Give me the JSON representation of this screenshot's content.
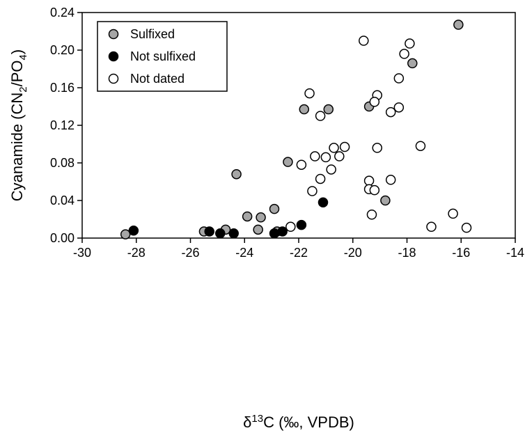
{
  "chart_data": {
    "type": "scatter",
    "xlabel_parts": {
      "delta": "δ",
      "sup": "13",
      "rest": "C (‰, VPDB)"
    },
    "ylabel_parts": {
      "pre": "Cyanamide (CN",
      "sub1": "2",
      "mid": "/PO",
      "sub2": "4",
      "post": ")"
    },
    "xlim": [
      -30,
      -14
    ],
    "ylim": [
      0,
      0.24
    ],
    "xticks": [
      -30,
      -28,
      -26,
      -24,
      -22,
      -20,
      -18,
      -16,
      -14
    ],
    "xtick_labels": [
      "-30",
      "-28",
      "-26",
      "-24",
      "-22",
      "-20",
      "-18",
      "-16",
      "-14"
    ],
    "yticks": [
      0,
      0.04,
      0.08,
      0.12,
      0.16,
      0.2,
      0.24
    ],
    "ytick_labels": [
      "0.00",
      "0.04",
      "0.08",
      "0.12",
      "0.16",
      "0.20",
      "0.24"
    ],
    "grid": false,
    "legend_position": "top-left",
    "series": [
      {
        "name": "Sulfixed",
        "fill": "#a6a6a6",
        "stroke": "#000000",
        "points": [
          [
            -28.4,
            0.004
          ],
          [
            -25.5,
            0.007
          ],
          [
            -24.7,
            0.009
          ],
          [
            -23.5,
            0.009
          ],
          [
            -22.8,
            0.007
          ],
          [
            -23.9,
            0.023
          ],
          [
            -23.4,
            0.022
          ],
          [
            -22.9,
            0.031
          ],
          [
            -24.3,
            0.068
          ],
          [
            -22.4,
            0.081
          ],
          [
            -21.8,
            0.137
          ],
          [
            -20.9,
            0.137
          ],
          [
            -19.4,
            0.14
          ],
          [
            -18.8,
            0.04
          ],
          [
            -17.8,
            0.186
          ],
          [
            -16.1,
            0.227
          ]
        ]
      },
      {
        "name": "Not sulfixed",
        "fill": "#000000",
        "stroke": "#000000",
        "points": [
          [
            -28.1,
            0.008
          ],
          [
            -25.3,
            0.007
          ],
          [
            -24.9,
            0.005
          ],
          [
            -24.4,
            0.005
          ],
          [
            -22.9,
            0.005
          ],
          [
            -22.6,
            0.007
          ],
          [
            -21.9,
            0.014
          ],
          [
            -21.1,
            0.038
          ]
        ]
      },
      {
        "name": "Not dated",
        "fill": "#ffffff",
        "stroke": "#000000",
        "points": [
          [
            -19.6,
            0.21
          ],
          [
            -17.9,
            0.207
          ],
          [
            -18.1,
            0.196
          ],
          [
            -18.3,
            0.17
          ],
          [
            -21.6,
            0.154
          ],
          [
            -19.1,
            0.152
          ],
          [
            -19.2,
            0.145
          ],
          [
            -18.3,
            0.139
          ],
          [
            -18.6,
            0.134
          ],
          [
            -21.2,
            0.13
          ],
          [
            -20.7,
            0.096
          ],
          [
            -20.3,
            0.097
          ],
          [
            -19.1,
            0.096
          ],
          [
            -17.5,
            0.098
          ],
          [
            -21.4,
            0.087
          ],
          [
            -21.0,
            0.086
          ],
          [
            -20.5,
            0.087
          ],
          [
            -21.9,
            0.078
          ],
          [
            -20.8,
            0.073
          ],
          [
            -21.2,
            0.063
          ],
          [
            -19.4,
            0.061
          ],
          [
            -18.6,
            0.062
          ],
          [
            -21.5,
            0.05
          ],
          [
            -19.4,
            0.052
          ],
          [
            -19.2,
            0.051
          ],
          [
            -19.3,
            0.025
          ],
          [
            -16.3,
            0.026
          ],
          [
            -17.1,
            0.012
          ],
          [
            -15.8,
            0.011
          ],
          [
            -22.3,
            0.012
          ]
        ]
      }
    ]
  }
}
